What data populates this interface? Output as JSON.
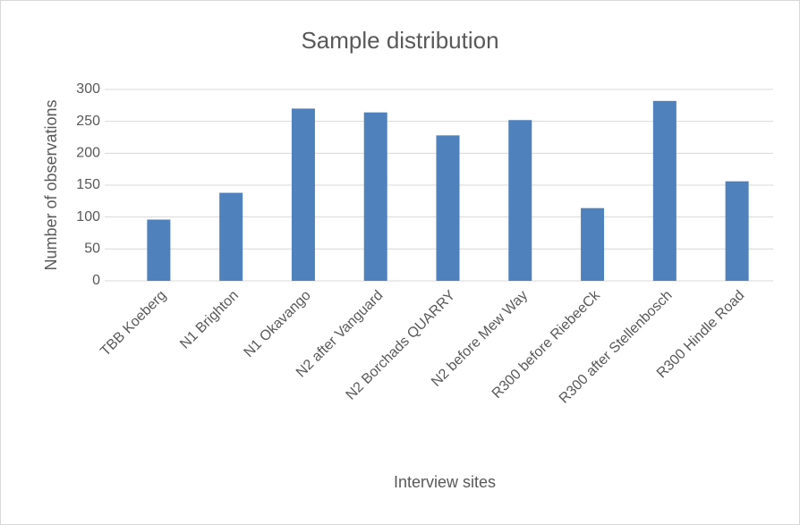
{
  "chart_data": {
    "type": "bar",
    "title": "Sample distribution",
    "x_label": "Interview sites",
    "y_label": "Number of observations",
    "categories": [
      "TBB Koeberg",
      "N1 Brighton",
      "N1 Okavango",
      "N2 after Vanguard",
      "N2 Borchads QUARRY",
      "N2 before Mew Way",
      "R300 before RiebeeCk",
      "R300 after Stellenbosch",
      "R300 Hindle Road"
    ],
    "values": [
      96,
      138,
      270,
      264,
      228,
      252,
      114,
      282,
      156
    ],
    "color": "#4f81bd",
    "ylim": [
      0,
      300
    ],
    "yticks": [
      0,
      50,
      100,
      150,
      200,
      250,
      300
    ],
    "grid": true
  }
}
